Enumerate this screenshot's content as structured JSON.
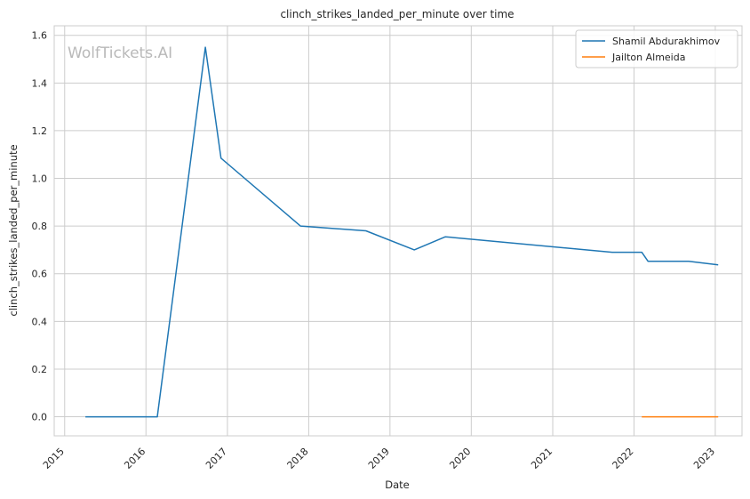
{
  "chart_data": {
    "type": "line",
    "title": "clinch_strikes_landed_per_minute over time",
    "xlabel": "Date",
    "ylabel": "clinch_strikes_landed_per_minute",
    "watermark": "WolfTickets.AI",
    "x_ticks": [
      "2015",
      "2016",
      "2017",
      "2018",
      "2019",
      "2020",
      "2021",
      "2022",
      "2023"
    ],
    "y_ticks": [
      "0.0",
      "0.2",
      "0.4",
      "0.6",
      "0.8",
      "1.0",
      "1.2",
      "1.4",
      "1.6"
    ],
    "xlim": [
      "2014-11-15",
      "2023-05-01"
    ],
    "ylim": [
      -0.08,
      1.64
    ],
    "grid": true,
    "legend_position": "top-right",
    "series": [
      {
        "name": "Shamil Abdurakhimov",
        "color": "#1f77b4",
        "points": [
          [
            "2015-04-04",
            0.0
          ],
          [
            "2016-02-21",
            0.0
          ],
          [
            "2016-09-24",
            1.55
          ],
          [
            "2016-12-03",
            1.085
          ],
          [
            "2017-11-25",
            0.8
          ],
          [
            "2018-09-15",
            0.78
          ],
          [
            "2019-04-20",
            0.7
          ],
          [
            "2019-09-07",
            0.755
          ],
          [
            "2021-09-25",
            0.69
          ],
          [
            "2022-02-05",
            0.69
          ],
          [
            "2022-03-05",
            0.652
          ],
          [
            "2022-09-03",
            0.652
          ],
          [
            "2023-01-14",
            0.637
          ]
        ]
      },
      {
        "name": "Jailton Almeida",
        "color": "#ff7f0e",
        "points": [
          [
            "2022-02-05",
            0.0
          ],
          [
            "2023-01-14",
            0.0
          ]
        ]
      }
    ]
  }
}
